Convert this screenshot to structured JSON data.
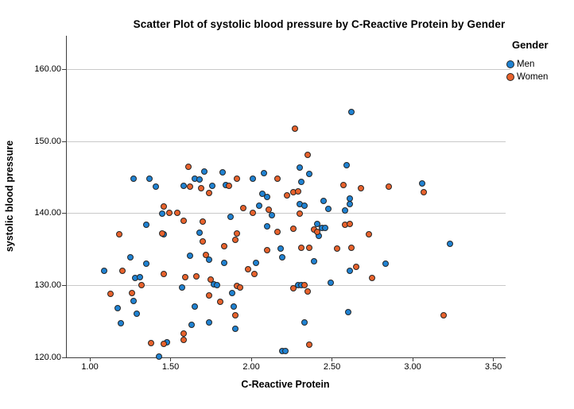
{
  "header": {
    "title": "Scatter Plot of systolic blood pressure by C-Reactive Protein by Gender"
  },
  "legend": {
    "title": "Gender",
    "items": [
      {
        "label": "Men",
        "color": "#1f82d2"
      },
      {
        "label": "Women",
        "color": "#e8622c"
      }
    ]
  },
  "colors": {
    "men": "#1f82d2",
    "women": "#e8622c",
    "marker_outline": "#262626",
    "gridline": "#c9c9c9",
    "axis": "#3d3d3d"
  },
  "chart_data": {
    "type": "scatter",
    "title": "Scatter Plot of systolic blood pressure by C-Reactive Protein by Gender",
    "xlabel": "C-Reactive Protein",
    "ylabel": "systolic blood pressure",
    "xlim": [
      0.857,
      3.576
    ],
    "ylim": [
      120,
      164.75
    ],
    "x_ticks": [
      1.0,
      1.5,
      2.0,
      2.5,
      3.0,
      3.5
    ],
    "x_tick_labels": [
      "1.00",
      "1.50",
      "2.00",
      "2.50",
      "3.00",
      "3.50"
    ],
    "y_ticks": [
      120,
      130,
      140,
      150,
      160
    ],
    "y_tick_labels": [
      "120.00",
      "130.00",
      "140.00",
      "150.00",
      "160.00"
    ],
    "grid_y": [
      130,
      140,
      150,
      160
    ],
    "grid": "horizontal-only",
    "legend_position": "top-right-outside",
    "series": [
      {
        "name": "Men",
        "color": "#1f82d2",
        "points": [
          [
            1.27,
            144.9
          ],
          [
            1.37,
            144.9
          ],
          [
            1.41,
            143.8
          ],
          [
            1.71,
            145.9
          ],
          [
            1.82,
            145.7
          ],
          [
            1.58,
            143.9
          ],
          [
            1.65,
            144.9
          ],
          [
            1.68,
            144.8
          ],
          [
            1.76,
            143.9
          ],
          [
            1.84,
            144.0
          ],
          [
            2.62,
            154.1
          ],
          [
            2.3,
            146.4
          ],
          [
            2.59,
            146.7
          ],
          [
            2.36,
            145.5
          ],
          [
            2.08,
            145.6
          ],
          [
            2.01,
            144.9
          ],
          [
            2.31,
            144.4
          ],
          [
            2.07,
            142.8
          ],
          [
            2.1,
            142.3
          ],
          [
            2.45,
            141.8
          ],
          [
            2.61,
            142.1
          ],
          [
            3.06,
            144.2
          ],
          [
            1.45,
            140.0
          ],
          [
            1.35,
            138.5
          ],
          [
            1.68,
            137.4
          ],
          [
            1.46,
            137.1
          ],
          [
            1.62,
            134.1
          ],
          [
            1.74,
            133.6
          ],
          [
            1.25,
            133.9
          ],
          [
            1.35,
            133.0
          ],
          [
            1.09,
            132.0
          ],
          [
            1.28,
            131.1
          ],
          [
            1.31,
            131.2
          ],
          [
            1.27,
            127.9
          ],
          [
            1.17,
            126.8
          ],
          [
            1.29,
            126.1
          ],
          [
            1.19,
            124.8
          ],
          [
            1.57,
            129.7
          ],
          [
            1.77,
            130.2
          ],
          [
            1.79,
            130.1
          ],
          [
            1.65,
            127.1
          ],
          [
            1.74,
            124.9
          ],
          [
            1.63,
            124.5
          ],
          [
            1.48,
            122.1
          ],
          [
            1.43,
            120.1
          ],
          [
            2.05,
            141.1
          ],
          [
            2.13,
            139.8
          ],
          [
            1.87,
            139.6
          ],
          [
            2.3,
            141.3
          ],
          [
            2.33,
            141.1
          ],
          [
            2.48,
            140.7
          ],
          [
            2.58,
            140.4
          ],
          [
            2.61,
            141.3
          ],
          [
            2.1,
            138.2
          ],
          [
            2.41,
            138.6
          ],
          [
            2.44,
            138.0
          ],
          [
            2.46,
            138.0
          ],
          [
            2.42,
            136.9
          ],
          [
            2.18,
            135.1
          ],
          [
            2.19,
            133.9
          ],
          [
            2.39,
            133.4
          ],
          [
            2.03,
            133.1
          ],
          [
            1.83,
            133.1
          ],
          [
            2.83,
            133.0
          ],
          [
            2.61,
            132.0
          ],
          [
            2.49,
            130.4
          ],
          [
            2.29,
            130.1
          ],
          [
            2.31,
            130.1
          ],
          [
            1.88,
            129.0
          ],
          [
            1.89,
            127.1
          ],
          [
            1.9,
            124.0
          ],
          [
            2.33,
            124.9
          ],
          [
            2.6,
            126.3
          ],
          [
            2.19,
            120.9
          ],
          [
            2.21,
            120.9
          ],
          [
            3.23,
            135.8
          ]
        ]
      },
      {
        "name": "Women",
        "color": "#e8622c",
        "points": [
          [
            1.61,
            146.5
          ],
          [
            1.62,
            143.8
          ],
          [
            1.69,
            143.5
          ],
          [
            1.74,
            142.9
          ],
          [
            2.27,
            151.8
          ],
          [
            2.35,
            148.2
          ],
          [
            1.91,
            144.9
          ],
          [
            1.86,
            143.9
          ],
          [
            2.16,
            144.9
          ],
          [
            2.22,
            142.5
          ],
          [
            2.26,
            143.0
          ],
          [
            2.29,
            143.1
          ],
          [
            2.57,
            144.0
          ],
          [
            2.68,
            143.5
          ],
          [
            2.85,
            143.8
          ],
          [
            3.07,
            143.0
          ],
          [
            1.46,
            141.0
          ],
          [
            1.49,
            140.1
          ],
          [
            1.54,
            140.1
          ],
          [
            1.58,
            139.0
          ],
          [
            1.7,
            138.9
          ],
          [
            1.45,
            137.2
          ],
          [
            1.18,
            137.1
          ],
          [
            1.7,
            136.1
          ],
          [
            1.83,
            135.5
          ],
          [
            1.72,
            134.3
          ],
          [
            1.2,
            132.0
          ],
          [
            1.32,
            130.1
          ],
          [
            1.13,
            128.8
          ],
          [
            1.26,
            129.0
          ],
          [
            1.59,
            131.2
          ],
          [
            1.66,
            131.3
          ],
          [
            1.75,
            130.8
          ],
          [
            1.46,
            131.6
          ],
          [
            1.74,
            128.6
          ],
          [
            1.81,
            127.7
          ],
          [
            1.58,
            123.3
          ],
          [
            1.58,
            122.4
          ],
          [
            1.38,
            122.0
          ],
          [
            1.46,
            121.9
          ],
          [
            1.95,
            140.8
          ],
          [
            2.01,
            140.1
          ],
          [
            2.11,
            140.6
          ],
          [
            2.3,
            140.0
          ],
          [
            2.16,
            137.5
          ],
          [
            2.26,
            137.9
          ],
          [
            2.39,
            137.8
          ],
          [
            2.41,
            137.5
          ],
          [
            2.58,
            138.4
          ],
          [
            2.61,
            138.6
          ],
          [
            2.73,
            137.1
          ],
          [
            1.91,
            137.2
          ],
          [
            1.9,
            136.4
          ],
          [
            2.1,
            134.9
          ],
          [
            2.31,
            135.3
          ],
          [
            2.36,
            135.3
          ],
          [
            2.53,
            135.1
          ],
          [
            2.62,
            135.3
          ],
          [
            1.98,
            132.3
          ],
          [
            2.02,
            131.6
          ],
          [
            2.65,
            132.6
          ],
          [
            2.75,
            131.0
          ],
          [
            2.26,
            129.6
          ],
          [
            2.33,
            130.1
          ],
          [
            2.35,
            129.2
          ],
          [
            1.91,
            129.9
          ],
          [
            1.93,
            129.7
          ],
          [
            1.9,
            125.9
          ],
          [
            2.36,
            121.8
          ],
          [
            3.19,
            125.9
          ]
        ]
      }
    ]
  }
}
